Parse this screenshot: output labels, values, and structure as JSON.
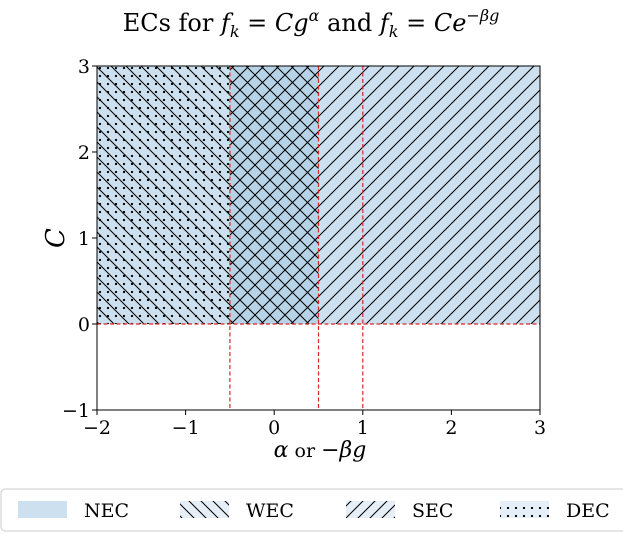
{
  "chart_data": {
    "type": "area",
    "title": "ECs for f_k = Cg^α and f_k = Ce^{−βg}",
    "xlabel": "α   or   −βg",
    "ylabel": "C",
    "xlim": [
      -2,
      3
    ],
    "ylim": [
      -1,
      3
    ],
    "x_ticks": [
      -2,
      -1,
      0,
      1,
      2,
      3
    ],
    "y_ticks": [
      -1,
      0,
      1,
      2,
      3
    ],
    "x_tick_labels": [
      "−2",
      "−1",
      "0",
      "1",
      "2",
      "3"
    ],
    "y_tick_labels": [
      "−1",
      "0",
      "1",
      "2",
      "3"
    ],
    "grid": false,
    "fill_color": "#cde0ef",
    "hatch_color": "#000000",
    "boundary_color": "#d62728",
    "series": [
      {
        "name": "NEC",
        "hatch": "fill",
        "x_range": [
          -2,
          3
        ],
        "y_range": [
          0,
          3
        ]
      },
      {
        "name": "WEC",
        "hatch": "backslash",
        "x_range": [
          -2,
          0.5
        ],
        "y_range": [
          0,
          3
        ]
      },
      {
        "name": "SEC",
        "hatch": "slash",
        "x_range": [
          -0.5,
          3
        ],
        "y_range": [
          0,
          3
        ]
      },
      {
        "name": "DEC",
        "hatch": "dots",
        "x_range": [
          -2,
          -0.5
        ],
        "y_range": [
          0,
          3
        ]
      }
    ],
    "boundaries": {
      "vertical_x": [
        -0.5,
        0.5,
        1
      ],
      "horizontal_y": [
        0
      ]
    },
    "legend_position": "bottom"
  }
}
